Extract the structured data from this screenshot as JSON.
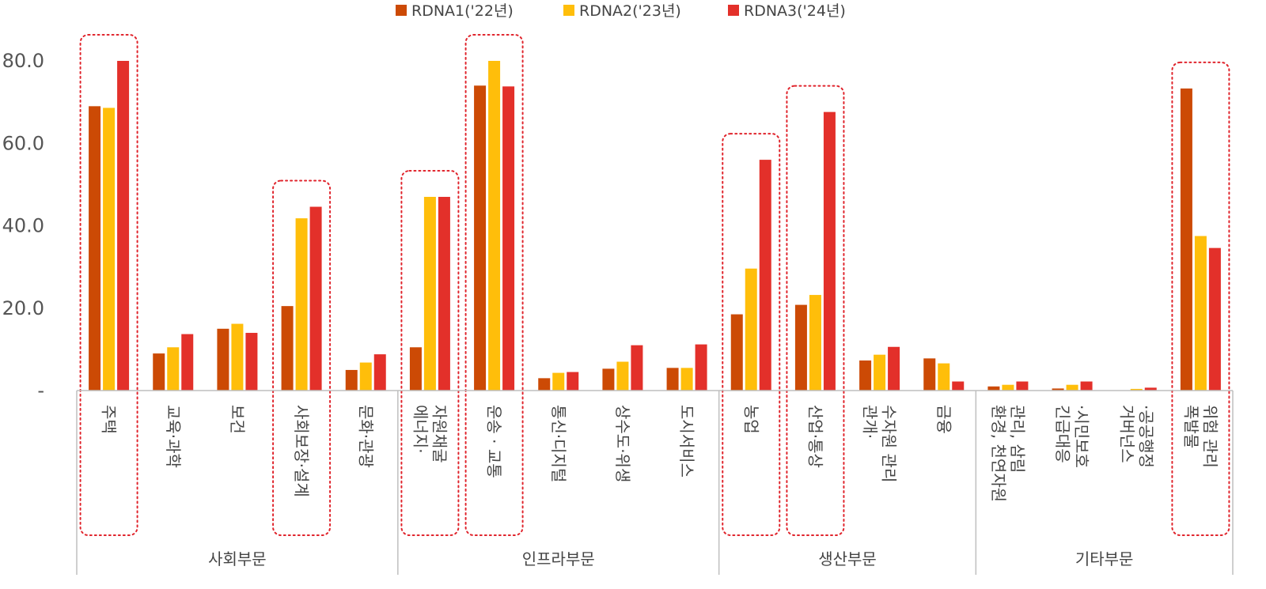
{
  "chart_data": {
    "type": "bar",
    "ylim": [
      0,
      80
    ],
    "y_ticks": [
      "-",
      "20.0",
      "40.0",
      "60.0",
      "80.0"
    ],
    "legend_position": "top-center",
    "grid": false,
    "categories": [
      "주택",
      "교육·과학",
      "보건",
      "사회보장·설계",
      "문화·관광",
      "에너지·\n자원채굴",
      "운송 · 교통",
      "통신·디지털",
      "상수도·위생",
      "도시서비스",
      "농업",
      "산업·통상",
      "관개·\n수자원 관리",
      "금융",
      "환경, 천연자원\n관리, 삼림",
      "긴급대응\n·시민보호",
      "거버넌스\n·공공행정",
      "폭발물\n위험 관리"
    ],
    "groups": [
      {
        "name": "사회부문",
        "start": 0,
        "end": 4
      },
      {
        "name": "인프라부문",
        "start": 5,
        "end": 9
      },
      {
        "name": "생산부문",
        "start": 10,
        "end": 13
      },
      {
        "name": "기타부문",
        "start": 14,
        "end": 17
      }
    ],
    "highlighted": [
      0,
      3,
      5,
      6,
      10,
      11,
      17
    ],
    "series": [
      {
        "name": "RDNA1('22년)",
        "color": "#cc4a05",
        "values": [
          69.0,
          9.0,
          15.0,
          20.5,
          5.0,
          10.5,
          74.0,
          3.0,
          5.3,
          5.5,
          18.5,
          20.8,
          7.3,
          7.8,
          1.0,
          0.5,
          0.0,
          73.3
        ]
      },
      {
        "name": "RDNA2('23년)",
        "color": "#ffbe0a",
        "values": [
          68.6,
          10.5,
          16.2,
          41.8,
          6.8,
          47.0,
          80.0,
          4.3,
          7.0,
          5.5,
          29.6,
          23.2,
          8.7,
          6.6,
          1.4,
          1.4,
          0.4,
          37.5
        ]
      },
      {
        "name": "RDNA3('24년)",
        "color": "#e3302a",
        "values": [
          80.0,
          13.7,
          14.0,
          44.6,
          8.8,
          47.0,
          73.8,
          4.5,
          11.0,
          11.2,
          56.0,
          67.6,
          10.6,
          2.2,
          2.2,
          2.2,
          0.7,
          34.6
        ]
      }
    ]
  }
}
